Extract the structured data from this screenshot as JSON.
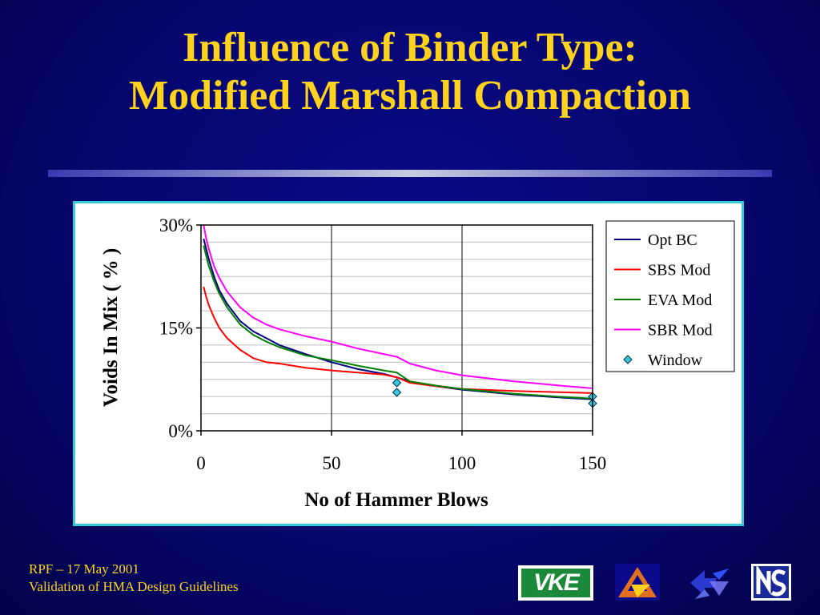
{
  "slide": {
    "title_line1": "Influence of Binder Type:",
    "title_line2": "Modified Marshall Compaction",
    "footer_line1": "RPF – 17 May 2001",
    "footer_line2": "Validation of HMA Design Guidelines",
    "logos": [
      {
        "name": "vke-logo",
        "text": "VKE"
      },
      {
        "name": "triangle-logo",
        "text": ""
      },
      {
        "name": "arrows-logo",
        "text": ""
      },
      {
        "name": "ns-logo",
        "text": ""
      }
    ]
  },
  "chart_data": {
    "type": "line",
    "title": "",
    "xlabel": "No of Hammer Blows",
    "ylabel": "Voids In Mix ( % )",
    "xlim": [
      0,
      150
    ],
    "ylim": [
      0,
      30
    ],
    "xticks": [
      "0",
      "50",
      "100",
      "150"
    ],
    "yticks": [
      "0%",
      "15%",
      "30%"
    ],
    "legend_position": "top-right",
    "series": [
      {
        "name": "Opt BC",
        "color": "#000080",
        "x": [
          1,
          2,
          3,
          5,
          7,
          10,
          15,
          20,
          25,
          30,
          40,
          50,
          60,
          70,
          75,
          80,
          90,
          100,
          120,
          140,
          150
        ],
        "y": [
          28.0,
          26.5,
          25.0,
          22.5,
          20.5,
          18.5,
          16.0,
          14.5,
          13.5,
          12.5,
          11.2,
          10.0,
          9.0,
          8.3,
          7.8,
          7.2,
          6.5,
          6.0,
          5.3,
          4.8,
          4.6
        ]
      },
      {
        "name": "SBS Mod",
        "color": "#ff0000",
        "x": [
          1,
          2,
          3,
          5,
          7,
          10,
          15,
          20,
          25,
          30,
          40,
          50,
          60,
          70,
          75,
          80,
          90,
          100,
          120,
          140,
          150
        ],
        "y": [
          21.0,
          19.5,
          18.3,
          16.5,
          15.0,
          13.5,
          11.8,
          10.6,
          10.0,
          9.8,
          9.2,
          8.8,
          8.5,
          8.2,
          7.8,
          7.0,
          6.5,
          6.1,
          5.8,
          5.6,
          5.5
        ]
      },
      {
        "name": "EVA Mod",
        "color": "#008000",
        "x": [
          1,
          2,
          3,
          5,
          7,
          10,
          15,
          20,
          25,
          30,
          40,
          50,
          60,
          70,
          75,
          80,
          90,
          100,
          120,
          140,
          150
        ],
        "y": [
          27.0,
          25.5,
          24.0,
          21.8,
          20.0,
          18.0,
          15.5,
          14.0,
          13.0,
          12.2,
          11.0,
          10.3,
          9.5,
          8.8,
          8.5,
          7.2,
          6.6,
          6.1,
          5.4,
          4.9,
          4.7
        ]
      },
      {
        "name": "SBR Mod",
        "color": "#ff00ff",
        "x": [
          1,
          2,
          3,
          5,
          7,
          10,
          15,
          20,
          25,
          30,
          40,
          50,
          60,
          70,
          75,
          80,
          90,
          100,
          120,
          140,
          150
        ],
        "y": [
          30.0,
          28.0,
          26.5,
          24.0,
          22.3,
          20.3,
          18.0,
          16.5,
          15.5,
          14.8,
          13.8,
          13.0,
          12.0,
          11.2,
          10.8,
          9.8,
          8.8,
          8.1,
          7.2,
          6.5,
          6.2
        ]
      },
      {
        "name": "Window",
        "color": "#37c9d6",
        "marker": "diamond",
        "x": [
          75,
          75,
          150,
          150
        ],
        "y": [
          7.0,
          5.6,
          5.0,
          4.0
        ]
      }
    ]
  }
}
